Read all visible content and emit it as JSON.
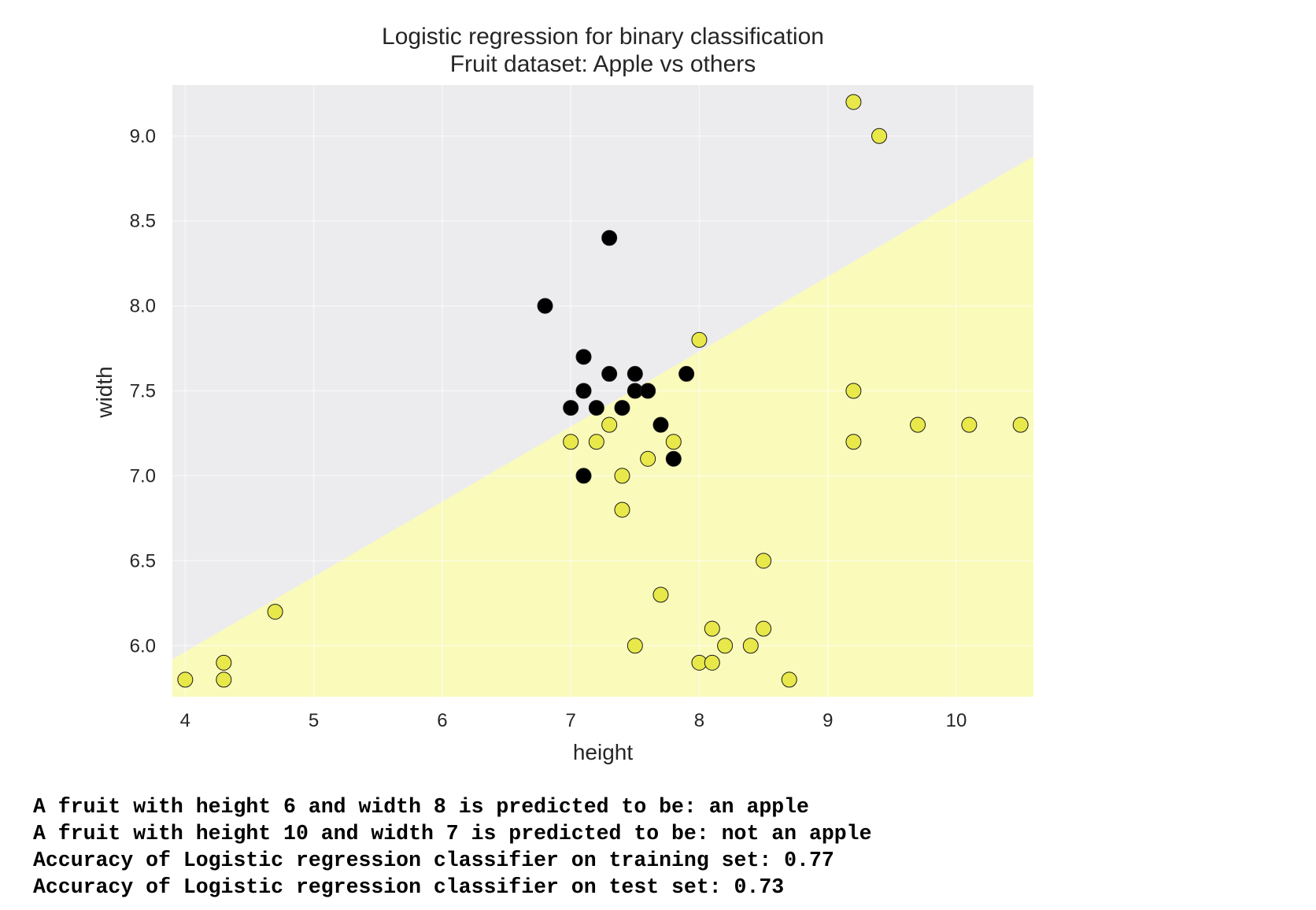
{
  "chart_data": {
    "type": "scatter",
    "title": [
      "Logistic regression for binary classification",
      "Fruit dataset: Apple vs others"
    ],
    "xlabel": "height",
    "ylabel": "width",
    "xlim": [
      3.9,
      10.6
    ],
    "ylim": [
      5.7,
      9.3
    ],
    "xticks": [
      4,
      5,
      6,
      7,
      8,
      9,
      10
    ],
    "xtick_labels": [
      "4",
      "5",
      "6",
      "7",
      "8",
      "9",
      "10"
    ],
    "yticks": [
      6.0,
      6.5,
      7.0,
      7.5,
      8.0,
      8.5,
      9.0
    ],
    "ytick_labels": [
      "6.0",
      "6.5",
      "7.0",
      "7.5",
      "8.0",
      "8.5",
      "9.0"
    ],
    "grid": true,
    "decision_boundary": {
      "x": [
        3.9,
        10.6
      ],
      "y": [
        5.92,
        8.88
      ]
    },
    "region_colors": {
      "above": "#ececef",
      "below": "#fafabb"
    },
    "series": [
      {
        "color": "#000000",
        "points": [
          [
            7.3,
            8.4
          ],
          [
            6.8,
            8.0
          ],
          [
            7.1,
            7.7
          ],
          [
            7.3,
            7.6
          ],
          [
            7.5,
            7.6
          ],
          [
            7.9,
            7.6
          ],
          [
            7.1,
            7.5
          ],
          [
            7.5,
            7.5
          ],
          [
            7.6,
            7.5
          ],
          [
            7.0,
            7.4
          ],
          [
            7.2,
            7.4
          ],
          [
            7.4,
            7.4
          ],
          [
            7.7,
            7.3
          ],
          [
            7.8,
            7.1
          ],
          [
            7.1,
            7.0
          ]
        ]
      },
      {
        "color": "#e8e84a",
        "points": [
          [
            9.2,
            9.2
          ],
          [
            9.4,
            9.0
          ],
          [
            8.0,
            7.8
          ],
          [
            9.2,
            7.5
          ],
          [
            7.3,
            7.3
          ],
          [
            9.7,
            7.3
          ],
          [
            10.1,
            7.3
          ],
          [
            10.5,
            7.3
          ],
          [
            7.0,
            7.2
          ],
          [
            7.2,
            7.2
          ],
          [
            7.8,
            7.2
          ],
          [
            9.2,
            7.2
          ],
          [
            7.6,
            7.1
          ],
          [
            7.4,
            7.0
          ],
          [
            7.4,
            6.8
          ],
          [
            8.5,
            6.5
          ],
          [
            7.7,
            6.3
          ],
          [
            4.7,
            6.2
          ],
          [
            8.1,
            6.1
          ],
          [
            8.5,
            6.1
          ],
          [
            7.5,
            6.0
          ],
          [
            8.2,
            6.0
          ],
          [
            8.4,
            6.0
          ],
          [
            4.3,
            5.9
          ],
          [
            8.0,
            5.9
          ],
          [
            8.1,
            5.9
          ],
          [
            4.0,
            5.8
          ],
          [
            4.3,
            5.8
          ],
          [
            8.7,
            5.8
          ]
        ]
      }
    ]
  },
  "output": {
    "lines": [
      "A fruit with height 6 and width 8 is predicted to be: an apple",
      "A fruit with height 10 and width 7 is predicted to be: not an apple",
      "Accuracy of Logistic regression classifier on training set: 0.77",
      "Accuracy of Logistic regression classifier on test set: 0.73"
    ]
  }
}
